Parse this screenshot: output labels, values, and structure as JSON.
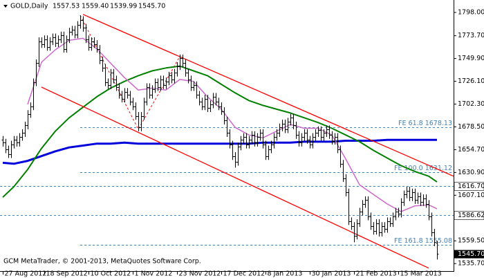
{
  "chart_data": {
    "type": "ohlc",
    "header": {
      "symbol": "GOLD,Daily",
      "ohlc": [
        "1557.53",
        "1559.40",
        "1539.99",
        "1545.70"
      ]
    },
    "footer": "GCM MetaTrader, © 2001-2013, MetaQuotes Software Corp.",
    "xlim": [
      -1,
      163
    ],
    "ylim": [
      1527.9,
      1811
    ],
    "xticks": [
      {
        "value": 0,
        "label": "27 Aug 2012"
      },
      {
        "value": 15,
        "label": "18 Sep 2012"
      },
      {
        "value": 31,
        "label": "10 Oct 2012"
      },
      {
        "value": 47,
        "label": "1 Nov 2012"
      },
      {
        "value": 63,
        "label": "23 Nov 2012"
      },
      {
        "value": 79,
        "label": "17 Dec 2012"
      },
      {
        "value": 95,
        "label": "8 Jan 2013"
      },
      {
        "value": 111,
        "label": "30 Jan 2013"
      },
      {
        "value": 127,
        "label": "21 Feb 2013"
      },
      {
        "value": 143,
        "label": "15 Mar 2013"
      }
    ],
    "yticks": [
      {
        "value": 1798,
        "label": "1798.00"
      },
      {
        "value": 1773.7,
        "label": "1773.70"
      },
      {
        "value": 1749.9,
        "label": "1749.90"
      },
      {
        "value": 1726.1,
        "label": "1726.10"
      },
      {
        "value": 1702.3,
        "label": "1702.30"
      },
      {
        "value": 1678.5,
        "label": "1678.50"
      },
      {
        "value": 1654.7,
        "label": "1654.70"
      },
      {
        "value": 1630.9,
        "label": "1630.90"
      },
      {
        "value": 1607.1,
        "label": "1607.10"
      },
      {
        "value": 1559.5,
        "label": "1559.50"
      },
      {
        "value": 1535.7,
        "label": "1535.70"
      }
    ],
    "ohlc": {
      "color": "#000000",
      "open": [
        1665,
        1662,
        1655,
        1650,
        1660,
        1665,
        1662,
        1668,
        1672,
        1680,
        1692,
        1700,
        1725,
        1745,
        1768,
        1765,
        1770,
        1762,
        1768,
        1772,
        1766,
        1770,
        1774,
        1760,
        1770,
        1778,
        1780,
        1775,
        1785,
        1790,
        1782,
        1770,
        1762,
        1768,
        1765,
        1760,
        1748,
        1740,
        1725,
        1722,
        1735,
        1728,
        1720,
        1712,
        1708,
        1715,
        1712,
        1705,
        1700,
        1690,
        1678,
        1690,
        1705,
        1720,
        1712,
        1718,
        1725,
        1720,
        1728,
        1722,
        1726,
        1732,
        1728,
        1735,
        1742,
        1750,
        1745,
        1735,
        1728,
        1720,
        1722,
        1712,
        1705,
        1700,
        1708,
        1698,
        1702,
        1710,
        1705,
        1700,
        1695,
        1685,
        1672,
        1660,
        1648,
        1642,
        1658,
        1665,
        1668,
        1660,
        1665,
        1670,
        1662,
        1668,
        1672,
        1660,
        1648,
        1655,
        1660,
        1668,
        1672,
        1678,
        1682,
        1676,
        1684,
        1688,
        1680,
        1670,
        1662,
        1668,
        1672,
        1665,
        1660,
        1668,
        1672,
        1675,
        1668,
        1672,
        1676,
        1670,
        1664,
        1668,
        1655,
        1640,
        1625,
        1610,
        1580,
        1575,
        1565,
        1578,
        1590,
        1598,
        1602,
        1585,
        1575,
        1570,
        1578,
        1568,
        1575,
        1572,
        1580,
        1578,
        1585,
        1590,
        1588,
        1600,
        1608,
        1612,
        1605,
        1610,
        1602,
        1606,
        1600,
        1604,
        1598,
        1585,
        1568,
        1557.53
      ],
      "high": [
        1669,
        1666,
        1659,
        1664,
        1669,
        1669,
        1672,
        1676,
        1684,
        1696,
        1704,
        1729,
        1749,
        1772,
        1772,
        1774,
        1774,
        1772,
        1776,
        1776,
        1774,
        1778,
        1778,
        1774,
        1782,
        1784,
        1784,
        1789,
        1795,
        1794,
        1786,
        1774,
        1772,
        1772,
        1769,
        1764,
        1752,
        1744,
        1729,
        1739,
        1739,
        1732,
        1724,
        1716,
        1719,
        1719,
        1716,
        1709,
        1704,
        1694,
        1694,
        1709,
        1724,
        1724,
        1722,
        1729,
        1729,
        1732,
        1732,
        1730,
        1736,
        1736,
        1739,
        1746,
        1754,
        1754,
        1749,
        1739,
        1732,
        1726,
        1726,
        1716,
        1709,
        1712,
        1712,
        1706,
        1714,
        1714,
        1709,
        1704,
        1699,
        1689,
        1676,
        1664,
        1652,
        1662,
        1669,
        1672,
        1672,
        1669,
        1674,
        1674,
        1672,
        1676,
        1676,
        1664,
        1659,
        1664,
        1672,
        1676,
        1682,
        1686,
        1686,
        1688,
        1692,
        1692,
        1684,
        1674,
        1672,
        1676,
        1676,
        1669,
        1672,
        1676,
        1679,
        1679,
        1676,
        1680,
        1680,
        1674,
        1672,
        1672,
        1659,
        1644,
        1629,
        1614,
        1584,
        1579,
        1582,
        1594,
        1602,
        1606,
        1606,
        1589,
        1579,
        1582,
        1582,
        1579,
        1579,
        1584,
        1584,
        1589,
        1594,
        1594,
        1604,
        1612,
        1616,
        1616,
        1614,
        1614,
        1610,
        1610,
        1608,
        1608,
        1602,
        1589,
        1572,
        1559.4
      ],
      "low": [
        1658,
        1651,
        1646,
        1646,
        1656,
        1658,
        1658,
        1664,
        1668,
        1676,
        1688,
        1696,
        1721,
        1741,
        1761,
        1761,
        1758,
        1758,
        1764,
        1762,
        1762,
        1766,
        1756,
        1756,
        1766,
        1774,
        1771,
        1771,
        1781,
        1778,
        1766,
        1758,
        1758,
        1761,
        1756,
        1744,
        1736,
        1721,
        1718,
        1718,
        1724,
        1716,
        1708,
        1704,
        1704,
        1708,
        1701,
        1696,
        1686,
        1674,
        1674,
        1686,
        1701,
        1708,
        1708,
        1714,
        1716,
        1716,
        1718,
        1718,
        1722,
        1724,
        1724,
        1731,
        1738,
        1741,
        1731,
        1724,
        1716,
        1716,
        1708,
        1701,
        1696,
        1696,
        1694,
        1694,
        1698,
        1701,
        1696,
        1691,
        1681,
        1668,
        1656,
        1644,
        1636,
        1638,
        1654,
        1661,
        1656,
        1656,
        1661,
        1658,
        1658,
        1664,
        1656,
        1644,
        1644,
        1651,
        1656,
        1664,
        1668,
        1674,
        1672,
        1672,
        1680,
        1676,
        1666,
        1658,
        1658,
        1664,
        1661,
        1656,
        1656,
        1664,
        1668,
        1664,
        1664,
        1668,
        1666,
        1660,
        1660,
        1651,
        1636,
        1621,
        1606,
        1576,
        1571,
        1558,
        1561,
        1574,
        1586,
        1594,
        1581,
        1571,
        1566,
        1566,
        1564,
        1564,
        1568,
        1568,
        1574,
        1574,
        1581,
        1584,
        1584,
        1596,
        1604,
        1601,
        1601,
        1598,
        1598,
        1596,
        1596,
        1594,
        1581,
        1564,
        1554,
        1539.99
      ],
      "close": [
        1662,
        1655,
        1650,
        1660,
        1665,
        1662,
        1668,
        1672,
        1680,
        1692,
        1700,
        1725,
        1745,
        1768,
        1765,
        1770,
        1762,
        1768,
        1772,
        1766,
        1770,
        1774,
        1760,
        1770,
        1778,
        1780,
        1775,
        1785,
        1790,
        1782,
        1770,
        1762,
        1768,
        1765,
        1760,
        1748,
        1740,
        1725,
        1722,
        1735,
        1728,
        1720,
        1712,
        1708,
        1715,
        1712,
        1705,
        1700,
        1690,
        1678,
        1690,
        1705,
        1720,
        1712,
        1718,
        1725,
        1720,
        1728,
        1722,
        1726,
        1732,
        1728,
        1735,
        1742,
        1750,
        1745,
        1735,
        1728,
        1720,
        1722,
        1712,
        1705,
        1700,
        1708,
        1698,
        1702,
        1710,
        1705,
        1700,
        1695,
        1685,
        1672,
        1660,
        1648,
        1642,
        1658,
        1665,
        1668,
        1660,
        1665,
        1670,
        1662,
        1668,
        1672,
        1660,
        1648,
        1655,
        1660,
        1668,
        1672,
        1678,
        1682,
        1676,
        1684,
        1688,
        1680,
        1670,
        1662,
        1668,
        1672,
        1665,
        1660,
        1668,
        1672,
        1675,
        1668,
        1672,
        1676,
        1670,
        1664,
        1668,
        1655,
        1640,
        1625,
        1610,
        1580,
        1575,
        1565,
        1578,
        1590,
        1598,
        1602,
        1585,
        1575,
        1570,
        1578,
        1568,
        1575,
        1572,
        1580,
        1578,
        1585,
        1590,
        1588,
        1600,
        1608,
        1612,
        1605,
        1610,
        1602,
        1606,
        1600,
        1604,
        1598,
        1585,
        1568,
        1558,
        1545.7
      ]
    },
    "indicators": [
      {
        "color": "#0000dd",
        "width": 3,
        "x": [
          0,
          4,
          9,
          14,
          19,
          24,
          29,
          34,
          39,
          44,
          49,
          54,
          59,
          64,
          69,
          74,
          79,
          84,
          89,
          94,
          99,
          104,
          109,
          114,
          119,
          124,
          129,
          134,
          139,
          144,
          149,
          154,
          157
        ],
        "values": [
          1641,
          1640,
          1643,
          1648,
          1653,
          1657,
          1659,
          1661,
          1661,
          1662,
          1661,
          1661,
          1661,
          1661,
          1661,
          1661,
          1661,
          1661,
          1661,
          1662,
          1662,
          1662,
          1663,
          1663,
          1663,
          1664,
          1664,
          1664,
          1665,
          1665,
          1665,
          1665,
          1665
        ]
      },
      {
        "color": "#008000",
        "width": 2,
        "x": [
          0,
          4,
          9,
          14,
          19,
          24,
          29,
          34,
          39,
          44,
          49,
          54,
          59,
          64,
          69,
          74,
          79,
          84,
          89,
          94,
          99,
          104,
          109,
          114,
          119,
          124,
          129,
          134,
          139,
          144,
          149,
          154,
          157
        ],
        "values": [
          1605,
          1616,
          1634,
          1656,
          1674,
          1688,
          1699,
          1710,
          1719,
          1726,
          1732,
          1737,
          1740,
          1742,
          1737,
          1732,
          1723,
          1714,
          1706,
          1701,
          1697,
          1693,
          1688,
          1683,
          1677,
          1670,
          1663,
          1654,
          1646,
          1638,
          1632,
          1627,
          1621
        ]
      },
      {
        "color": "#cc66cc",
        "width": 1.5,
        "x": [
          0,
          4,
          9,
          14,
          19,
          24,
          29,
          34,
          39,
          44,
          49,
          54,
          59,
          64,
          69,
          74,
          79,
          84,
          89,
          94,
          99,
          104,
          109,
          114,
          119,
          124,
          129,
          134,
          139,
          144,
          149,
          154,
          157
        ],
        "values": [
          null,
          null,
          1702,
          1746,
          1759,
          1769,
          1771,
          1760,
          1745,
          1730,
          1717,
          1719,
          1717,
          1728,
          1726,
          1710,
          1697,
          1678,
          1670,
          1667,
          1674,
          1681,
          1677,
          1677,
          1670,
          1645,
          1618,
          1608,
          1598,
          1590,
          1596,
          1597,
          1593
        ]
      }
    ],
    "trendlines": [
      {
        "color": "#ff0000",
        "x": [
          29,
          163
        ],
        "values": [
          1796,
          1627
        ]
      },
      {
        "color": "#ff0000",
        "x": [
          14,
          154
        ],
        "values": [
          1720,
          1531
        ]
      }
    ],
    "fe_points": {
      "color": "#ff0000",
      "x": [
        28,
        49,
        64
      ],
      "values": [
        1795,
        1676,
        1752
      ]
    },
    "fe_levels": [
      {
        "value": 1678.13,
        "label": "FE 61.8 1678.13"
      },
      {
        "value": 1631.12,
        "label": "FE 100.0 1631.12"
      },
      {
        "value": 1555.08,
        "label": "FE 161.8 1555.08"
      }
    ],
    "levels": [
      {
        "value": 1616.7,
        "label": "1616.70"
      },
      {
        "value": 1586.62,
        "label": "1586.62"
      }
    ],
    "level_color": "#4682b4",
    "price_label": {
      "value": 1545.7,
      "label": "1545.70"
    }
  }
}
